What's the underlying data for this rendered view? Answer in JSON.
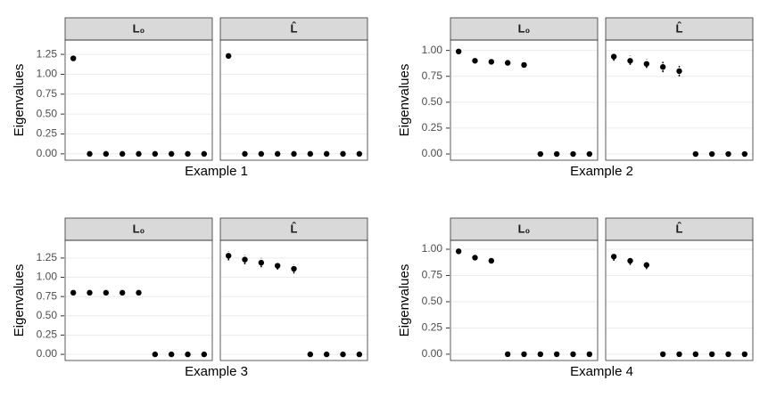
{
  "chart_data": [
    {
      "type": "scatter",
      "title": "Example 1",
      "ylabel": "Eigenvalues",
      "color": "#000000",
      "grid": true,
      "ylim": [
        -0.08,
        1.43
      ],
      "yticks": [
        {
          "value": 0,
          "label": "0.00"
        },
        {
          "value": 0.25,
          "label": "0.25"
        },
        {
          "value": 0.5,
          "label": "0.50"
        },
        {
          "value": 0.75,
          "label": "0.75"
        },
        {
          "value": 1,
          "label": "1.00"
        },
        {
          "value": 1.25,
          "label": "1.25"
        }
      ],
      "panels": [
        {
          "label": "L₀",
          "values": [
            1.2,
            0,
            0,
            0,
            0,
            0,
            0,
            0,
            0
          ]
        },
        {
          "label": "L̂",
          "values": [
            1.23,
            0,
            0,
            0,
            0,
            0,
            0,
            0,
            0
          ],
          "low": [
            1.2,
            null,
            null,
            null,
            null,
            null,
            null,
            null,
            null
          ],
          "high": [
            1.26,
            null,
            null,
            null,
            null,
            null,
            null,
            null,
            null
          ]
        }
      ]
    },
    {
      "type": "scatter",
      "title": "Example 2",
      "ylabel": "Eigenvalues",
      "color": "#000000",
      "grid": true,
      "ylim": [
        -0.06,
        1.1
      ],
      "yticks": [
        {
          "value": 0,
          "label": "0.00"
        },
        {
          "value": 0.25,
          "label": "0.25"
        },
        {
          "value": 0.5,
          "label": "0.50"
        },
        {
          "value": 0.75,
          "label": "0.75"
        },
        {
          "value": 1,
          "label": "1.00"
        }
      ],
      "panels": [
        {
          "label": "L₀",
          "values": [
            0.99,
            0.9,
            0.89,
            0.88,
            0.86,
            0,
            0,
            0,
            0
          ]
        },
        {
          "label": "L̂",
          "values": [
            0.94,
            0.9,
            0.87,
            0.84,
            0.8,
            0,
            0,
            0,
            0
          ],
          "low": [
            0.9,
            0.86,
            0.83,
            0.79,
            0.75,
            null,
            null,
            null,
            null
          ],
          "high": [
            0.98,
            0.95,
            0.92,
            0.89,
            0.85,
            null,
            null,
            null,
            null
          ]
        }
      ]
    },
    {
      "type": "scatter",
      "title": "Example 3",
      "ylabel": "Eigenvalues",
      "color": "#000000",
      "grid": true,
      "ylim": [
        -0.08,
        1.48
      ],
      "yticks": [
        {
          "value": 0,
          "label": "0.00"
        },
        {
          "value": 0.25,
          "label": "0.25"
        },
        {
          "value": 0.5,
          "label": "0.50"
        },
        {
          "value": 0.75,
          "label": "0.75"
        },
        {
          "value": 1,
          "label": "1.00"
        },
        {
          "value": 1.25,
          "label": "1.25"
        }
      ],
      "panels": [
        {
          "label": "L₀",
          "values": [
            0.8,
            0.8,
            0.8,
            0.8,
            0.8,
            0,
            0,
            0,
            0
          ]
        },
        {
          "label": "L̂",
          "values": [
            1.28,
            1.23,
            1.19,
            1.15,
            1.11,
            0,
            0,
            0,
            0
          ],
          "low": [
            1.22,
            1.17,
            1.13,
            1.1,
            1.05,
            null,
            null,
            null,
            null
          ],
          "high": [
            1.34,
            1.29,
            1.25,
            1.21,
            1.17,
            null,
            null,
            null,
            null
          ]
        }
      ]
    },
    {
      "type": "scatter",
      "title": "Example 4",
      "ylabel": "Eigenvalues",
      "color": "#000000",
      "grid": true,
      "ylim": [
        -0.06,
        1.085
      ],
      "yticks": [
        {
          "value": 0,
          "label": "0.00"
        },
        {
          "value": 0.25,
          "label": "0.25"
        },
        {
          "value": 0.5,
          "label": "0.50"
        },
        {
          "value": 0.75,
          "label": "0.75"
        },
        {
          "value": 1,
          "label": "1.00"
        }
      ],
      "panels": [
        {
          "label": "L₀",
          "values": [
            0.98,
            0.92,
            0.89,
            0,
            0,
            0,
            0,
            0,
            0
          ]
        },
        {
          "label": "L̂",
          "values": [
            0.93,
            0.89,
            0.85,
            0,
            0,
            0,
            0,
            0,
            0
          ],
          "low": [
            0.89,
            0.85,
            0.81,
            null,
            null,
            null,
            null,
            null,
            null
          ],
          "high": [
            0.96,
            0.93,
            0.89,
            null,
            null,
            null,
            null,
            null,
            null
          ]
        }
      ]
    }
  ]
}
